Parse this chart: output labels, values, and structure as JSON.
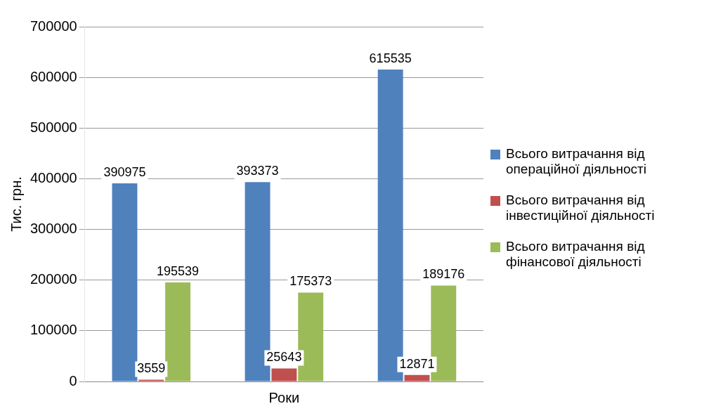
{
  "chart_data": {
    "type": "bar",
    "xlabel": "Роки",
    "ylabel": "Тис. грн.",
    "categories": [
      null,
      null,
      null
    ],
    "series": [
      {
        "name": "Всього витрачання від операційної діяльності",
        "color": "#4f81bd",
        "values": [
          390975,
          393373,
          615535
        ]
      },
      {
        "name": "Всього витрачання від інвестиційної  діяльності",
        "color": "#c0504d",
        "values": [
          3559,
          25643,
          12871
        ]
      },
      {
        "name": "Всього витрачання від фінансової діяльності",
        "color": "#9bbb59",
        "values": [
          195539,
          175373,
          189176
        ]
      }
    ],
    "ylim": [
      0,
      700000
    ],
    "yticks": [
      0,
      100000,
      200000,
      300000,
      400000,
      500000,
      600000,
      700000
    ],
    "grid": "y",
    "legend": "right",
    "tick_labels": "y",
    "data_labels": true
  }
}
